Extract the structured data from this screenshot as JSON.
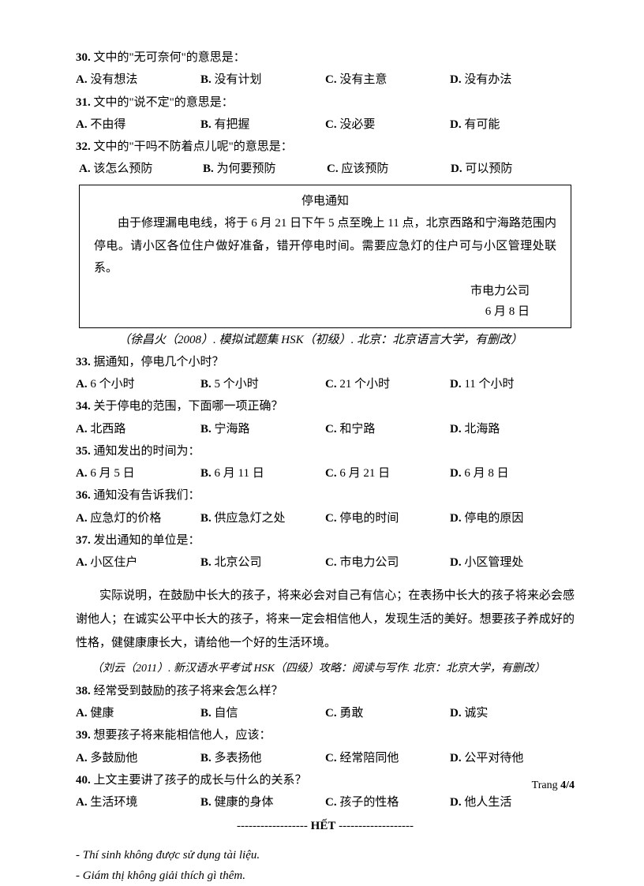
{
  "q30": {
    "stem_num": "30.",
    "stem": " 文中的\"无可奈何\"的意思是：",
    "a": "没有想法",
    "b": "没有计划",
    "c": "没有主意",
    "d": "没有办法"
  },
  "q31": {
    "stem_num": "31.",
    "stem": " 文中的\"说不定\"的意思是：",
    "a": "不由得",
    "b": "有把握",
    "c": "没必要",
    "d": "有可能"
  },
  "q32": {
    "stem_num": "32.",
    "stem": " 文中的\"干吗不防着点儿呢\"的意思是：",
    "a": "该怎么预防",
    "b": "为何要预防",
    "c": "应该预防",
    "d": "可以预防"
  },
  "notice": {
    "title": "停电通知",
    "body": "由于修理漏电电线，将于 6 月 21 日下午 5 点至晚上 11 点，北京西路和宁海路范围内停电。请小区各位住户做好准备，错开停电时间。需要应急灯的住户可与小区管理处联系。",
    "sign1": "市电力公司",
    "sign2": "6 月 8 日"
  },
  "src1": "（徐昌火（2008）. 模拟试题集 HSK（初级）. 北京：北京语言大学，有删改）",
  "q33": {
    "stem_num": "33.",
    "stem": " 据通知，停电几个小时？",
    "a": "6 个小时",
    "b": "5 个小时",
    "c": "21 个小时",
    "d": "11 个小时"
  },
  "q34": {
    "stem_num": "34.",
    "stem": " 关于停电的范围，下面哪一项正确？",
    "a": "北西路",
    "b": "宁海路",
    "c": "和宁路",
    "d": "北海路"
  },
  "q35": {
    "stem_num": "35.",
    "stem": " 通知发出的时间为：",
    "a": "6 月 5 日",
    "b": "6 月 11 日",
    "c": "6 月 21 日",
    "d": "6 月 8 日"
  },
  "q36": {
    "stem_num": "36.",
    "stem": " 通知没有告诉我们：",
    "a": "应急灯的价格",
    "b": "供应急灯之处",
    "c": "停电的时间",
    "d": "停电的原因"
  },
  "q37": {
    "stem_num": "37.",
    "stem": " 发出通知的单位是：",
    "a": "小区住户",
    "b": "北京公司",
    "c": "市电力公司",
    "d": "小区管理处"
  },
  "passage": "实际说明，在鼓励中长大的孩子，将来必会对自己有信心；在表扬中长大的孩子将来必会感谢他人；在诚实公平中长大的孩子，将来一定会相信他人，发现生活的美好。想要孩子养成好的性格，健健康康长大，请给他一个好的生活环境。",
  "src2": "（刘云（2011）. 新汉语水平考试 HSK（四级）攻略：阅读与写作. 北京：北京大学，有删改）",
  "q38": {
    "stem_num": "38.",
    "stem": " 经常受到鼓励的孩子将来会怎么样？",
    "a": "健康",
    "b": "自信",
    "c": "勇敢",
    "d": "诚实"
  },
  "q39": {
    "stem_num": "39.",
    "stem": " 想要孩子将来能相信他人，应该：",
    "a": "多鼓励他",
    "b": "多表扬他",
    "c": "经常陪同他",
    "d": "公平对待他"
  },
  "q40": {
    "stem_num": "40.",
    "stem": " 上文主要讲了孩子的成长与什么的关系？",
    "a": "生活环境",
    "b": "健康的身体",
    "c": "孩子的性格",
    "d": "他人生活"
  },
  "end": {
    "dash1": "------------------ ",
    "word": "HẾT",
    "dash2": " -------------------"
  },
  "foot1": "- Thí sinh không được sử dụng tài liệu.",
  "foot2": "- Giám thị không giải thích gì thêm.",
  "page_label": "Trang ",
  "page_num": "4/4"
}
